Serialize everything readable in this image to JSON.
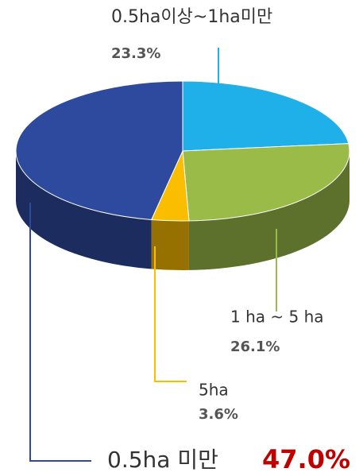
{
  "chart_data": {
    "type": "pie3d",
    "categories": [
      "0.5ha이상~1ha미만",
      "1 ha ~ 5 ha",
      "5ha",
      "0.5ha 미만"
    ],
    "values": [
      23.3,
      26.1,
      3.6,
      47.0
    ],
    "value_labels": [
      "23.3%",
      "26.1%",
      "3.6%",
      "47.0%"
    ],
    "colors": [
      "#1fb0ea",
      "#9bbb49",
      "#fbbd00",
      "#2e4a9e"
    ],
    "highlight": {
      "index": 3,
      "color": "#c00000"
    }
  }
}
